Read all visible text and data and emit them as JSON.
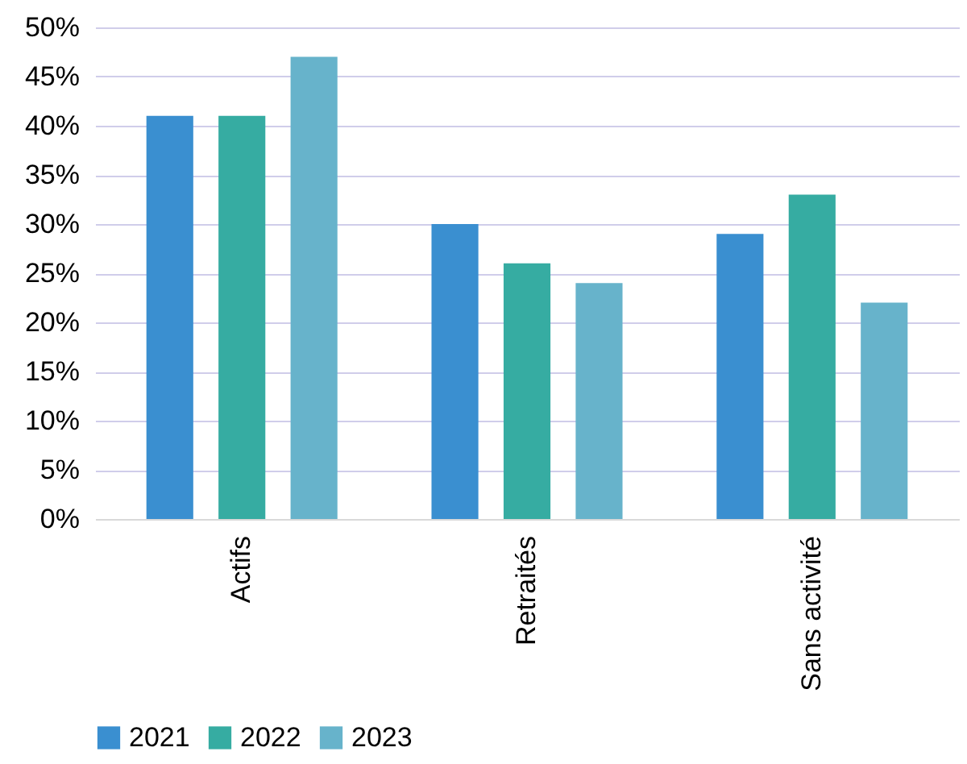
{
  "chart_data": {
    "type": "bar",
    "categories": [
      "Actifs",
      "Retraités",
      "Sans activité"
    ],
    "series": [
      {
        "name": "2021",
        "color": "#3a8fd0",
        "values": [
          41,
          30,
          29
        ]
      },
      {
        "name": "2022",
        "color": "#36aca2",
        "values": [
          41,
          26,
          33
        ]
      },
      {
        "name": "2023",
        "color": "#67b3cb",
        "values": [
          47,
          24,
          22
        ]
      }
    ],
    "ylim": [
      0,
      50
    ],
    "yticks": [
      {
        "value": 0,
        "label": "0%"
      },
      {
        "value": 5,
        "label": "5%"
      },
      {
        "value": 10,
        "label": "10%"
      },
      {
        "value": 15,
        "label": "15%"
      },
      {
        "value": 20,
        "label": "20%"
      },
      {
        "value": 25,
        "label": "25%"
      },
      {
        "value": 30,
        "label": "30%"
      },
      {
        "value": 35,
        "label": "35%"
      },
      {
        "value": 40,
        "label": "40%"
      },
      {
        "value": 45,
        "label": "45%"
      },
      {
        "value": 50,
        "label": "50%"
      }
    ],
    "grid": "y",
    "legend": "bottom"
  }
}
